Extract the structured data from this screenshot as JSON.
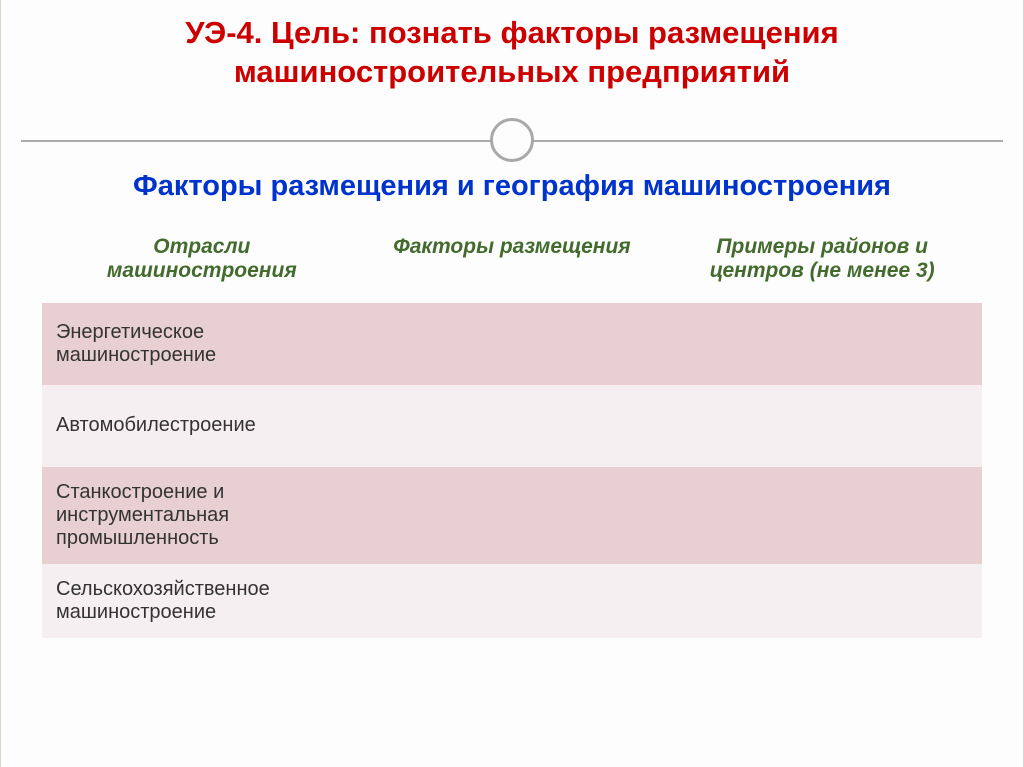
{
  "header": {
    "title_line1": "УЭ-4. Цель: познать факторы размещения",
    "title_line2": "машиностроительных предприятий"
  },
  "subtitle": "Факторы размещения и география машиностроения",
  "table": {
    "headers": {
      "col1_l1": "Отрасли",
      "col1_l2": "машиностроения",
      "col2": "Факторы размещения",
      "col3_l1": "Примеры районов и",
      "col3_l2": "центров (не менее 3)"
    },
    "rows": [
      {
        "branch": "Энергетическое машиностроение",
        "factors": "",
        "examples": ""
      },
      {
        "branch": "Автомобилестроение",
        "factors": "",
        "examples": ""
      },
      {
        "branch": "Станкостроение и инструментальная промышленность",
        "factors": "",
        "examples": ""
      },
      {
        "branch": "Сельскохозяйственное машиностроение",
        "factors": "",
        "examples": ""
      }
    ],
    "row_colors": {
      "odd": "#e8cfd2",
      "even": "#f6eff1"
    }
  },
  "colors": {
    "title": "#cc0000",
    "subtitle": "#0033cc",
    "table_header_text": "#446b2e",
    "divider": "#a9a9a9",
    "background": "#fdfdfd"
  }
}
